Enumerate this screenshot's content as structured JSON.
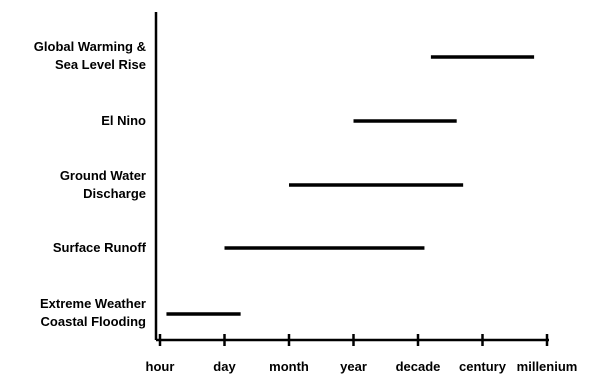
{
  "chart_data": {
    "type": "bar",
    "orientation": "horizontal-range",
    "x_ticks": [
      "hour",
      "day",
      "month",
      "year",
      "decade",
      "century",
      "millenium"
    ],
    "categories": [
      "Global Warming &\nSea Level Rise",
      "El Nino",
      "Ground Water\nDischarge",
      "Surface Runoff",
      "Extreme Weather\nCoastal Flooding"
    ],
    "ranges": [
      {
        "start": 4.2,
        "end": 5.8
      },
      {
        "start": 3.0,
        "end": 4.6
      },
      {
        "start": 2.0,
        "end": 4.7
      },
      {
        "start": 1.0,
        "end": 4.1
      },
      {
        "start": 0.1,
        "end": 1.25
      }
    ],
    "x_range": [
      0,
      6
    ],
    "grid": false,
    "legend": "none",
    "colors": {
      "bar": "#000000",
      "axis": "#000000",
      "text": "#000000"
    }
  }
}
